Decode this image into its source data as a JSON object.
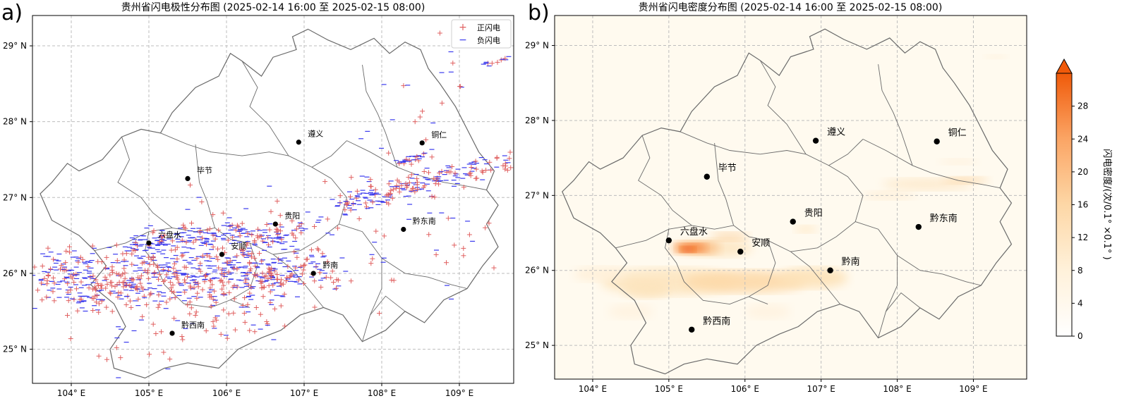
{
  "panel_a": {
    "label": "a)",
    "title": "贵州省闪电极性分布图 (2025-02-14 16:00 至 2025-02-15 08:00)",
    "legend": {
      "positive": {
        "symbol": "+",
        "label": "正闪电",
        "color": "#e06060"
      },
      "negative": {
        "symbol": "−",
        "label": "负闪电",
        "color": "#3a3aee"
      }
    }
  },
  "panel_b": {
    "label": "b)",
    "title": "贵州省闪电密度分布图 (2025-02-14 16:00 至 2025-02-15 08:00)",
    "colorbar": {
      "label": "闪电密度/(次/0.1° ×0.1° )",
      "ticks": [
        "0",
        "4",
        "8",
        "12",
        "16",
        "20",
        "24",
        "28"
      ],
      "low_color": "#fffdf8",
      "high_color": "#f05a0a"
    }
  },
  "axes": {
    "lon_range": [
      103.5,
      109.7
    ],
    "lat_range": [
      24.55,
      29.4
    ],
    "lon_ticks": [
      {
        "value": 104,
        "label": "104° E"
      },
      {
        "value": 105,
        "label": "105° E"
      },
      {
        "value": 106,
        "label": "106° E"
      },
      {
        "value": 107,
        "label": "107° E"
      },
      {
        "value": 108,
        "label": "108° E"
      },
      {
        "value": 109,
        "label": "109° E"
      }
    ],
    "lat_ticks": [
      {
        "value": 25,
        "label": "25° N"
      },
      {
        "value": 26,
        "label": "26° N"
      },
      {
        "value": 27,
        "label": "27° N"
      },
      {
        "value": 28,
        "label": "28° N"
      },
      {
        "value": 29,
        "label": "29° N"
      }
    ]
  },
  "cities": [
    {
      "name": "遵义",
      "lon": 106.93,
      "lat": 27.73
    },
    {
      "name": "铜仁",
      "lon": 108.52,
      "lat": 27.72
    },
    {
      "name": "毕节",
      "lon": 105.5,
      "lat": 27.25
    },
    {
      "name": "贵阳",
      "lon": 106.63,
      "lat": 26.65
    },
    {
      "name": "六盘水",
      "lon": 105.0,
      "lat": 26.4
    },
    {
      "name": "安顺",
      "lon": 105.94,
      "lat": 26.25
    },
    {
      "name": "黔东南",
      "lon": 108.28,
      "lat": 26.58
    },
    {
      "name": "黔南",
      "lon": 107.12,
      "lat": 26.0
    },
    {
      "name": "黔西南",
      "lon": 105.3,
      "lat": 25.21
    }
  ],
  "colors": {
    "map_bg_b": "#fffaef",
    "boundary": "#6a6a6a",
    "grid": "#bdbdbd"
  }
}
